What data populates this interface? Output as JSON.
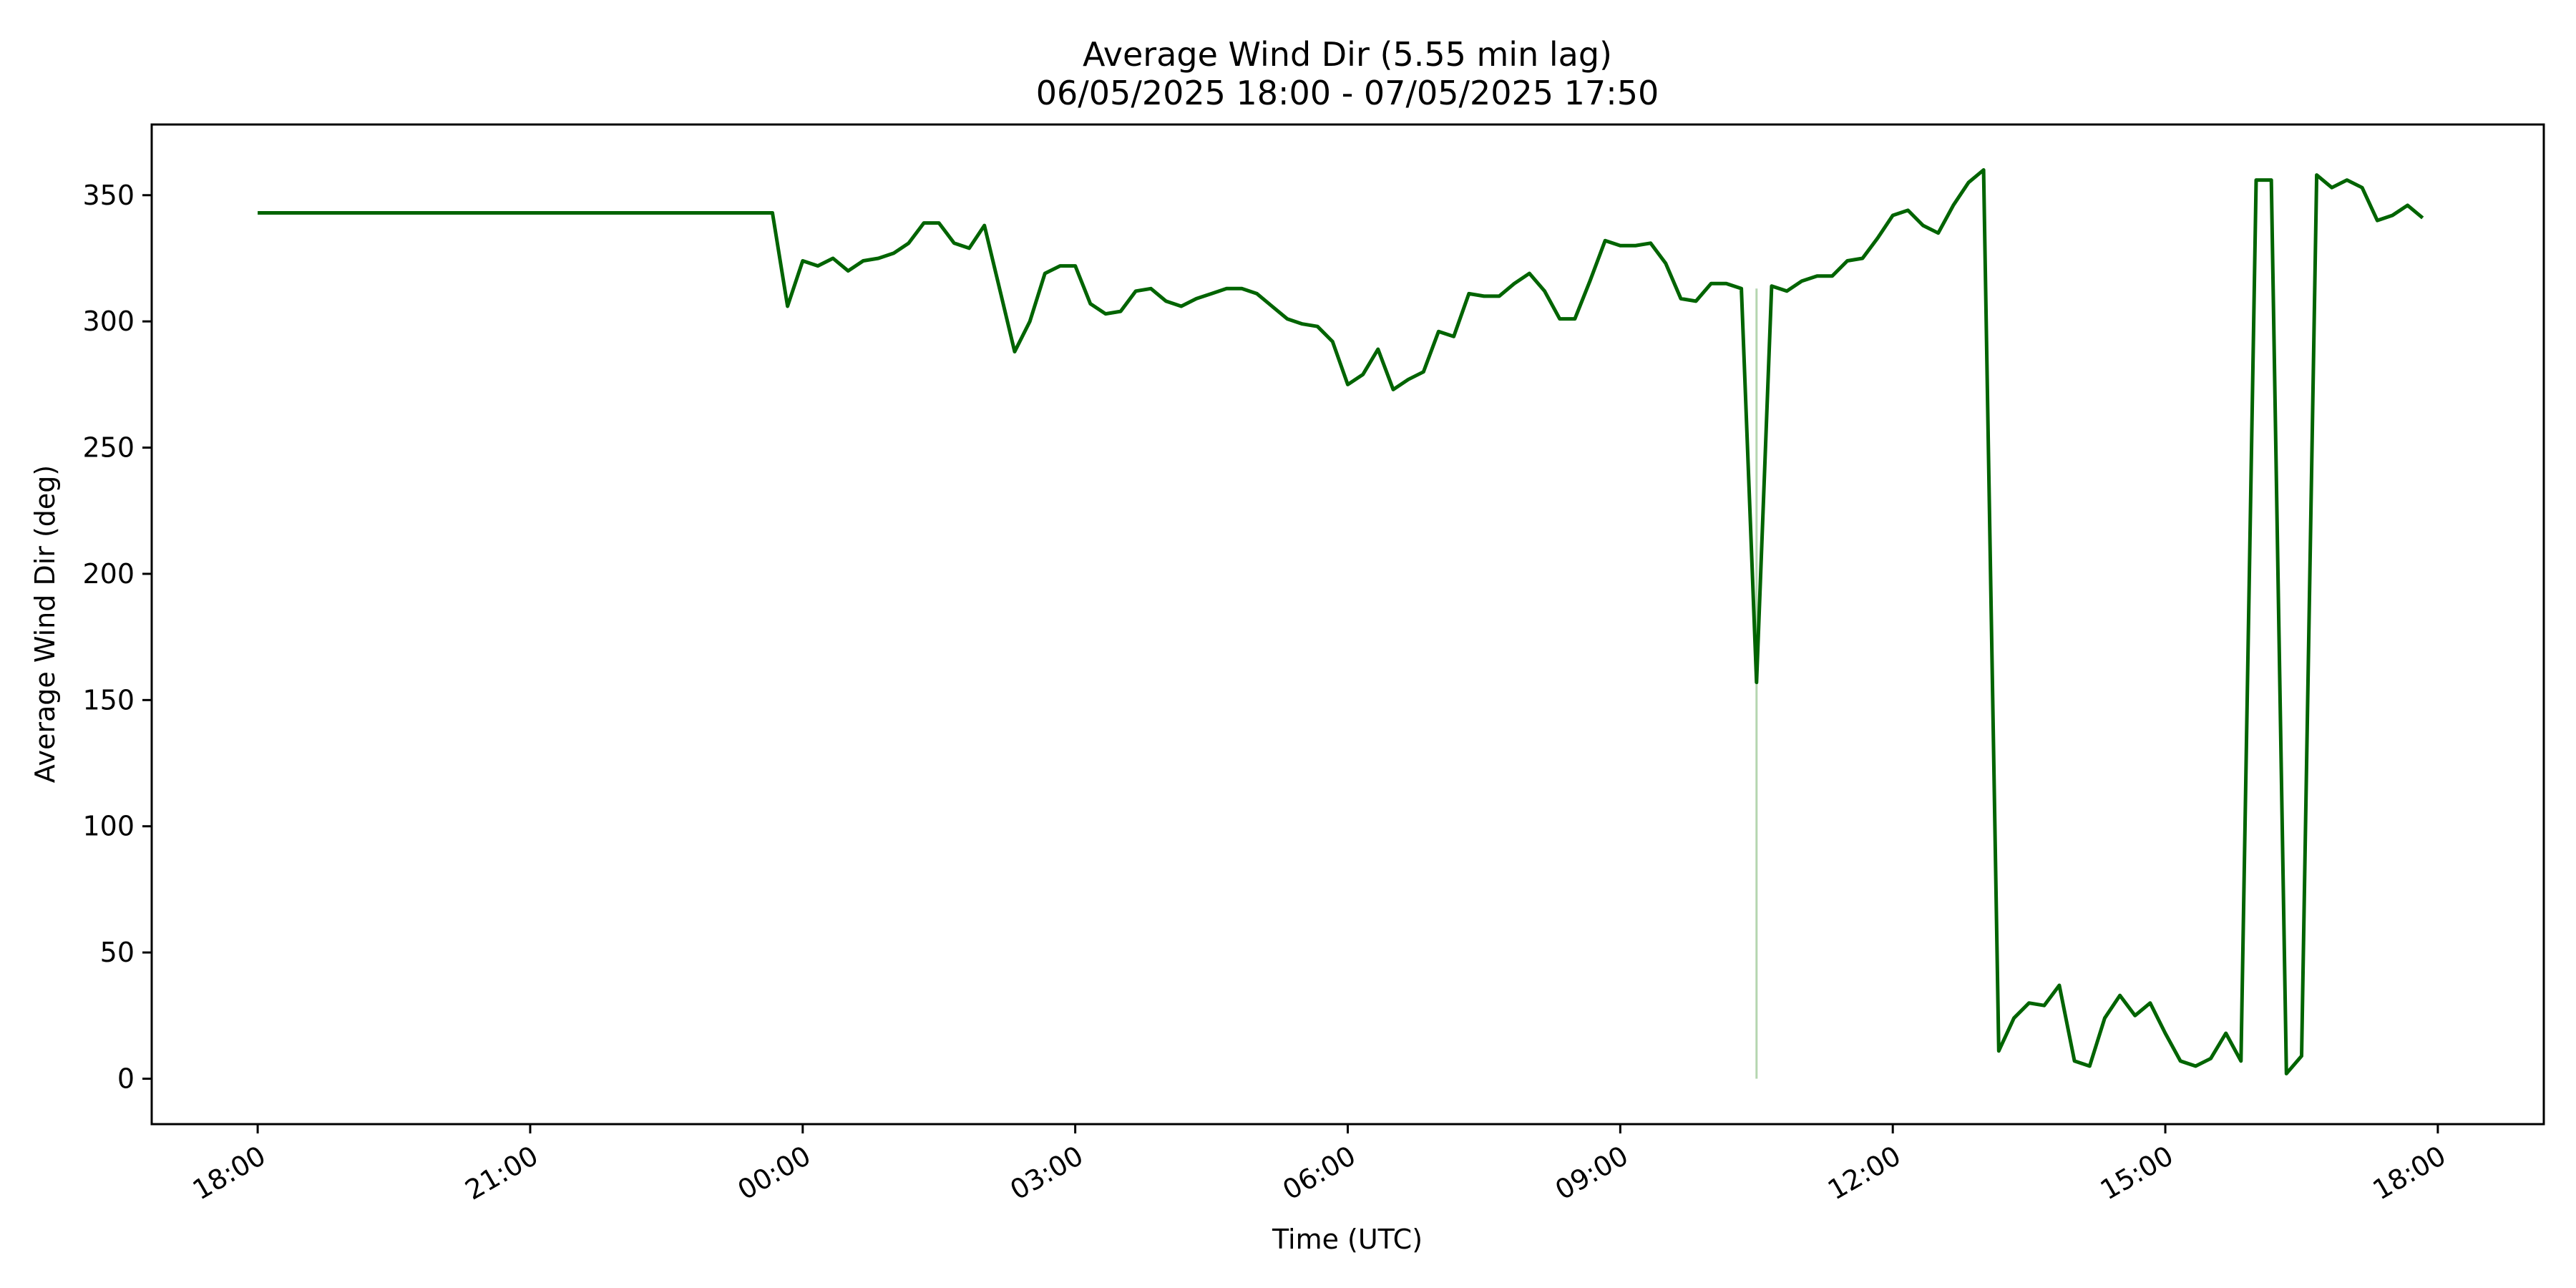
{
  "chart_data": {
    "type": "line",
    "title": "Average Wind Dir (5.55 min lag)",
    "subtitle": "06/05/2025 18:00 - 07/05/2025 17:50",
    "xlabel": "Time (UTC)",
    "ylabel": "Average Wind Dir (deg)",
    "xlim": [
      "2025-05-06 16:50",
      "2025-05-07 19:10"
    ],
    "ylim": [
      -18,
      378
    ],
    "grid": false,
    "x_ticks": [
      {
        "label": "18:00",
        "x": "2025-05-06 18:00"
      },
      {
        "label": "21:00",
        "x": "2025-05-06 21:00"
      },
      {
        "label": "00:00",
        "x": "2025-05-07 00:00"
      },
      {
        "label": "03:00",
        "x": "2025-05-07 03:00"
      },
      {
        "label": "06:00",
        "x": "2025-05-07 06:00"
      },
      {
        "label": "09:00",
        "x": "2025-05-07 09:00"
      },
      {
        "label": "12:00",
        "x": "2025-05-07 12:00"
      },
      {
        "label": "15:00",
        "x": "2025-05-07 15:00"
      },
      {
        "label": "18:00",
        "x": "2025-05-07 18:00"
      }
    ],
    "y_ticks": [
      0,
      50,
      100,
      150,
      200,
      250,
      300,
      350
    ],
    "series": [
      {
        "color": "#006400",
        "x": [
          "2025-05-06 18:00",
          "2025-05-06 23:40",
          "2025-05-06 23:50",
          "2025-05-07 00:00",
          "2025-05-07 00:10",
          "2025-05-07 00:20",
          "2025-05-07 00:30",
          "2025-05-07 00:40",
          "2025-05-07 00:50",
          "2025-05-07 01:00",
          "2025-05-07 01:10",
          "2025-05-07 01:20",
          "2025-05-07 01:30",
          "2025-05-07 01:40",
          "2025-05-07 01:50",
          "2025-05-07 02:00",
          "2025-05-07 02:10",
          "2025-05-07 02:20",
          "2025-05-07 02:30",
          "2025-05-07 02:40",
          "2025-05-07 02:50",
          "2025-05-07 03:00",
          "2025-05-07 03:10",
          "2025-05-07 03:20",
          "2025-05-07 03:30",
          "2025-05-07 03:40",
          "2025-05-07 03:50",
          "2025-05-07 04:00",
          "2025-05-07 04:10",
          "2025-05-07 04:20",
          "2025-05-07 04:30",
          "2025-05-07 04:40",
          "2025-05-07 04:50",
          "2025-05-07 05:00",
          "2025-05-07 05:10",
          "2025-05-07 05:20",
          "2025-05-07 05:30",
          "2025-05-07 05:40",
          "2025-05-07 05:50",
          "2025-05-07 06:00",
          "2025-05-07 06:10",
          "2025-05-07 06:20",
          "2025-05-07 06:30",
          "2025-05-07 06:40",
          "2025-05-07 06:50",
          "2025-05-07 07:00",
          "2025-05-07 07:10",
          "2025-05-07 07:20",
          "2025-05-07 07:30",
          "2025-05-07 07:40",
          "2025-05-07 07:50",
          "2025-05-07 08:00",
          "2025-05-07 08:10",
          "2025-05-07 08:20",
          "2025-05-07 08:30",
          "2025-05-07 08:40",
          "2025-05-07 08:50",
          "2025-05-07 09:00",
          "2025-05-07 09:10",
          "2025-05-07 09:20",
          "2025-05-07 09:30",
          "2025-05-07 09:40",
          "2025-05-07 09:50",
          "2025-05-07 10:00",
          "2025-05-07 10:10",
          "2025-05-07 10:20",
          "2025-05-07 10:30",
          "2025-05-07 10:40",
          "2025-05-07 10:50",
          "2025-05-07 11:00",
          "2025-05-07 11:10",
          "2025-05-07 11:20",
          "2025-05-07 11:30",
          "2025-05-07 11:40",
          "2025-05-07 11:50",
          "2025-05-07 12:00",
          "2025-05-07 12:10",
          "2025-05-07 12:20",
          "2025-05-07 12:30",
          "2025-05-07 12:40",
          "2025-05-07 12:50",
          "2025-05-07 13:00",
          "2025-05-07 13:10",
          "2025-05-07 13:20",
          "2025-05-07 13:30",
          "2025-05-07 13:40",
          "2025-05-07 13:50",
          "2025-05-07 14:00",
          "2025-05-07 14:10",
          "2025-05-07 14:20",
          "2025-05-07 14:30",
          "2025-05-07 14:40",
          "2025-05-07 14:50",
          "2025-05-07 15:00",
          "2025-05-07 15:10",
          "2025-05-07 15:20",
          "2025-05-07 15:30",
          "2025-05-07 15:40",
          "2025-05-07 15:50",
          "2025-05-07 16:00",
          "2025-05-07 16:10",
          "2025-05-07 16:20",
          "2025-05-07 16:30",
          "2025-05-07 16:40",
          "2025-05-07 16:50",
          "2025-05-07 17:00",
          "2025-05-07 17:10",
          "2025-05-07 17:20",
          "2025-05-07 17:30",
          "2025-05-07 17:40",
          "2025-05-07 17:50"
        ],
        "values": [
          343,
          343,
          306,
          324,
          322,
          325,
          320,
          324,
          325,
          327,
          331,
          339,
          339,
          331,
          329,
          338,
          313,
          288,
          300,
          319,
          322,
          322,
          307,
          303,
          304,
          312,
          313,
          308,
          306,
          309,
          311,
          313,
          313,
          311,
          306,
          301,
          299,
          298,
          292,
          275,
          279,
          289,
          273,
          277,
          280,
          296,
          294,
          311,
          310,
          310,
          315,
          319,
          312,
          301,
          301,
          316,
          332,
          330,
          330,
          331,
          323,
          309,
          308,
          315,
          315,
          313,
          157,
          314,
          312,
          316,
          318,
          318,
          324,
          325,
          333,
          342,
          344,
          338,
          335,
          346,
          355,
          360,
          11,
          24,
          30,
          29,
          37,
          7,
          5,
          24,
          33,
          25,
          30,
          18,
          7,
          5,
          8,
          18,
          7,
          356,
          356,
          2,
          9,
          358,
          353,
          356,
          353,
          340,
          342,
          346,
          341
        ]
      },
      {
        "color": "#b5d6b0",
        "x": [
          "2025-05-07 10:30",
          "2025-05-07 10:30"
        ],
        "values": [
          313,
          0
        ]
      }
    ]
  }
}
